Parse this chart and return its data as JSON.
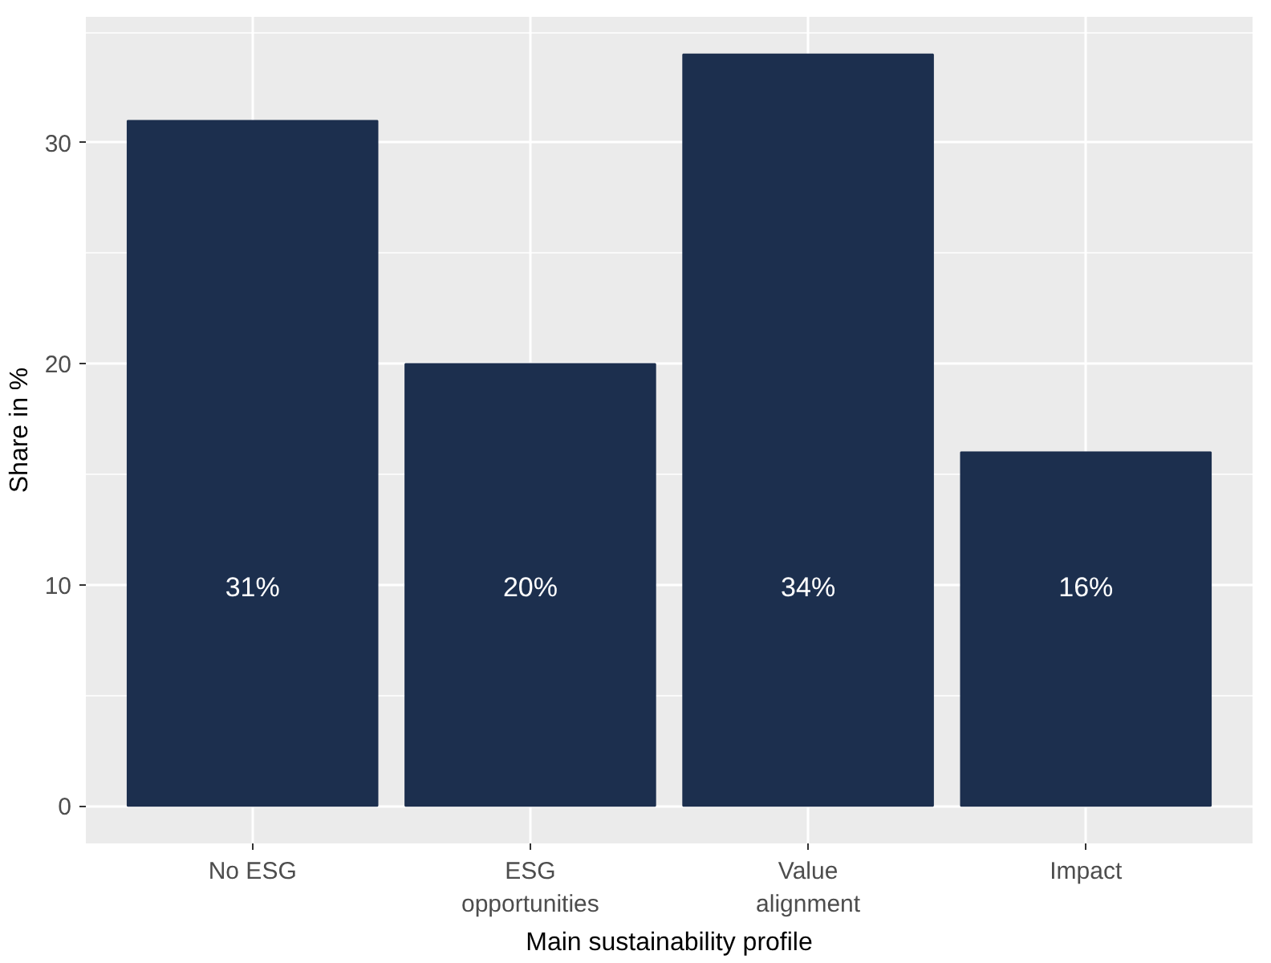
{
  "chart_data": {
    "type": "bar",
    "xlabel": "Main sustainability profile",
    "ylabel": "Share in %",
    "categories": [
      "No ESG",
      "ESG\nopportunities",
      "Value\nalignment",
      "Impact"
    ],
    "values": [
      31,
      20,
      34,
      16
    ],
    "value_labels": [
      "31%",
      "20%",
      "34%",
      "16%"
    ],
    "color": "#1c2f4e",
    "ylim": [
      -1.7,
      35.7
    ],
    "yticks": [
      0,
      10,
      20,
      30
    ],
    "grid": true
  }
}
